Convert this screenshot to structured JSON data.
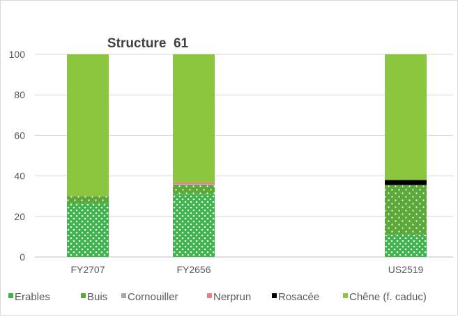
{
  "chart_data": {
    "type": "bar",
    "stacked": true,
    "title": "Structure  61",
    "xlabel": "",
    "ylabel": "",
    "ylim": [
      0,
      100
    ],
    "yticks": [
      0,
      20,
      40,
      60,
      80,
      100
    ],
    "grid": true,
    "legend_position": "bottom",
    "categories": [
      "FY2707",
      "FY2656",
      "",
      "US2519"
    ],
    "series": [
      {
        "name": "Erables",
        "color": "#3cb54a",
        "pattern": "dots-sparse",
        "values": [
          26.5,
          31,
          null,
          11
        ]
      },
      {
        "name": "Buis",
        "color": "#5ca838",
        "pattern": "dots-dense",
        "values": [
          3.5,
          4.5,
          null,
          24.5
        ]
      },
      {
        "name": "Cornouiller",
        "color": "#a6a6a6",
        "pattern": "solid",
        "values": [
          0,
          0.5,
          null,
          0
        ]
      },
      {
        "name": "Nerprun",
        "color": "#f08080",
        "pattern": "solid",
        "values": [
          0,
          0.8,
          null,
          0
        ]
      },
      {
        "name": "Rosacée",
        "color": "#000000",
        "pattern": "solid",
        "values": [
          0,
          0,
          null,
          2.5
        ]
      },
      {
        "name": "Chêne (f. caduc)",
        "color": "#8cc63f",
        "pattern": "solid",
        "values": [
          70,
          63.2,
          null,
          62
        ]
      }
    ]
  }
}
